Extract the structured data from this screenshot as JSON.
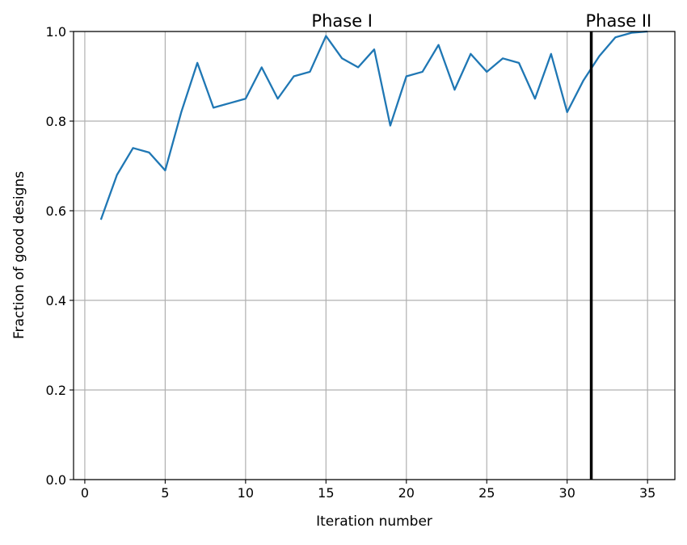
{
  "chart_data": {
    "type": "line",
    "xlabel": "Iteration number",
    "ylabel": "Fraction of good designs",
    "xlim": [
      -0.7,
      36.7
    ],
    "ylim": [
      0.0,
      1.0
    ],
    "grid": true,
    "x_ticks": [
      0,
      5,
      10,
      15,
      20,
      25,
      30,
      35
    ],
    "y_ticks": [
      0.0,
      0.2,
      0.4,
      0.6,
      0.8,
      1.0
    ],
    "x_tick_labels": [
      "0",
      "5",
      "10",
      "15",
      "20",
      "25",
      "30",
      "35"
    ],
    "y_tick_labels": [
      "0.0",
      "0.2",
      "0.4",
      "0.6",
      "0.8",
      "1.0"
    ],
    "series": [
      {
        "color": "#1f77b4",
        "x": [
          1,
          2,
          3,
          4,
          5,
          6,
          7,
          8,
          9,
          10,
          11,
          12,
          13,
          14,
          15,
          16,
          17,
          18,
          19,
          20,
          21,
          22,
          23,
          24,
          25,
          26,
          27,
          28,
          29,
          30,
          31,
          32,
          33,
          34,
          35
        ],
        "y": [
          0.58,
          0.68,
          0.74,
          0.73,
          0.69,
          0.82,
          0.93,
          0.83,
          0.84,
          0.85,
          0.92,
          0.85,
          0.9,
          0.91,
          0.99,
          0.94,
          0.92,
          0.96,
          0.79,
          0.9,
          0.91,
          0.97,
          0.87,
          0.95,
          0.91,
          0.94,
          0.93,
          0.85,
          0.95,
          0.82,
          0.89,
          0.945,
          0.987,
          0.997,
          1.0
        ]
      }
    ],
    "vline": {
      "x": 31.5,
      "color": "#000000"
    },
    "annotations": [
      {
        "text": "Phase I",
        "x": 16
      },
      {
        "text": "Phase II",
        "x": 33.2
      }
    ]
  }
}
